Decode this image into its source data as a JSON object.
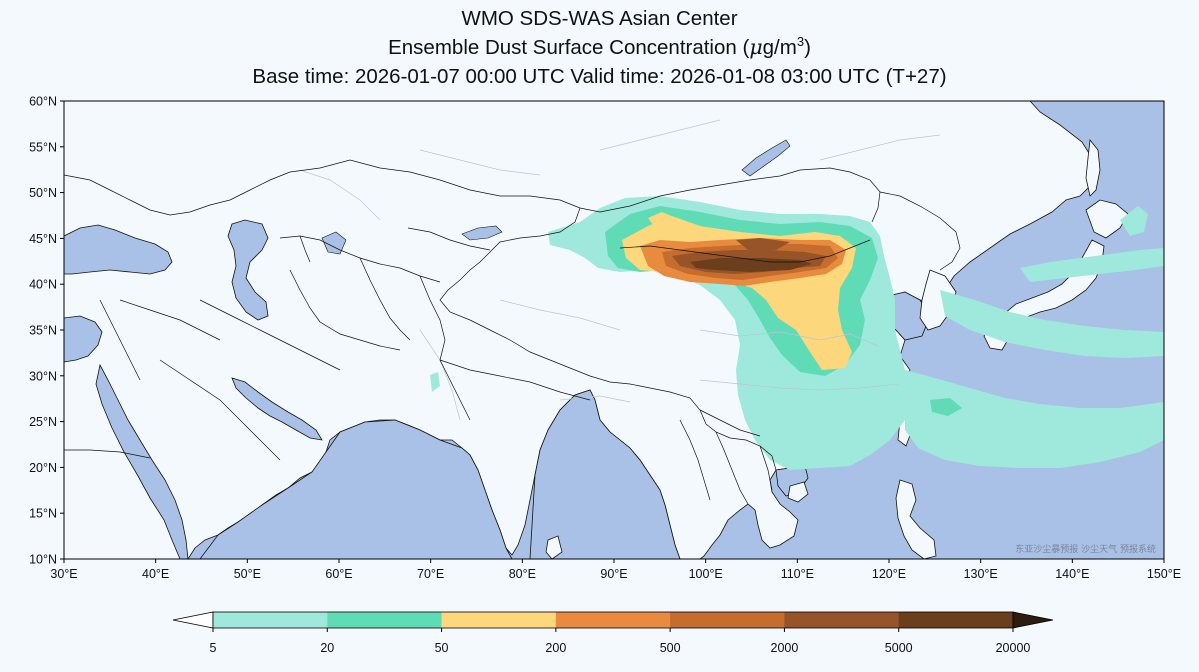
{
  "title": {
    "line1": "WMO SDS-WAS Asian Center",
    "line2_prefix": "Ensemble Dust Surface Concentration (",
    "line2_mu": "μ",
    "line2_unit": "g/m",
    "line2_exp": "3",
    "line2_suffix": ")",
    "line3": "Base time: 2026-01-07 00:00 UTC Valid time: 2026-01-08 03:00 UTC (T+27)"
  },
  "watermark": "东亚沙尘暴预报 沙尘天气 预报系统",
  "colors": {
    "ocean": "#a9c1e6",
    "land": "#f4f9fd",
    "border": "#111111",
    "river": "#b8c6d6"
  },
  "chart_data": {
    "type": "heatmap",
    "map_projection": "PlateCarree",
    "xlim": [
      30,
      150
    ],
    "ylim": [
      10,
      60
    ],
    "x_ticks": [
      30,
      40,
      50,
      60,
      70,
      80,
      90,
      100,
      110,
      120,
      130,
      140,
      150
    ],
    "x_tick_labels": [
      "30°E",
      "40°E",
      "50°E",
      "60°E",
      "70°E",
      "80°E",
      "90°E",
      "100°E",
      "110°E",
      "120°E",
      "130°E",
      "140°E",
      "150°E"
    ],
    "y_ticks": [
      10,
      15,
      20,
      25,
      30,
      35,
      40,
      45,
      50,
      55,
      60
    ],
    "y_tick_labels": [
      "10°N",
      "15°N",
      "20°N",
      "25°N",
      "30°N",
      "35°N",
      "40°N",
      "45°N",
      "50°N",
      "55°N",
      "60°N"
    ],
    "colorbar": {
      "levels": [
        5,
        20,
        50,
        200,
        500,
        2000,
        5000,
        20000
      ],
      "level_labels": [
        "5",
        "20",
        "50",
        "200",
        "500",
        "2000",
        "5000",
        "20000"
      ],
      "colors": [
        "#9fe8dc",
        "#5fdcb6",
        "#fcd77b",
        "#e98b3f",
        "#c46d2c",
        "#965428",
        "#6b3e1e"
      ],
      "under_color": "#ffffff",
      "over_color": "#2d1d0f",
      "extend": "both"
    }
  }
}
